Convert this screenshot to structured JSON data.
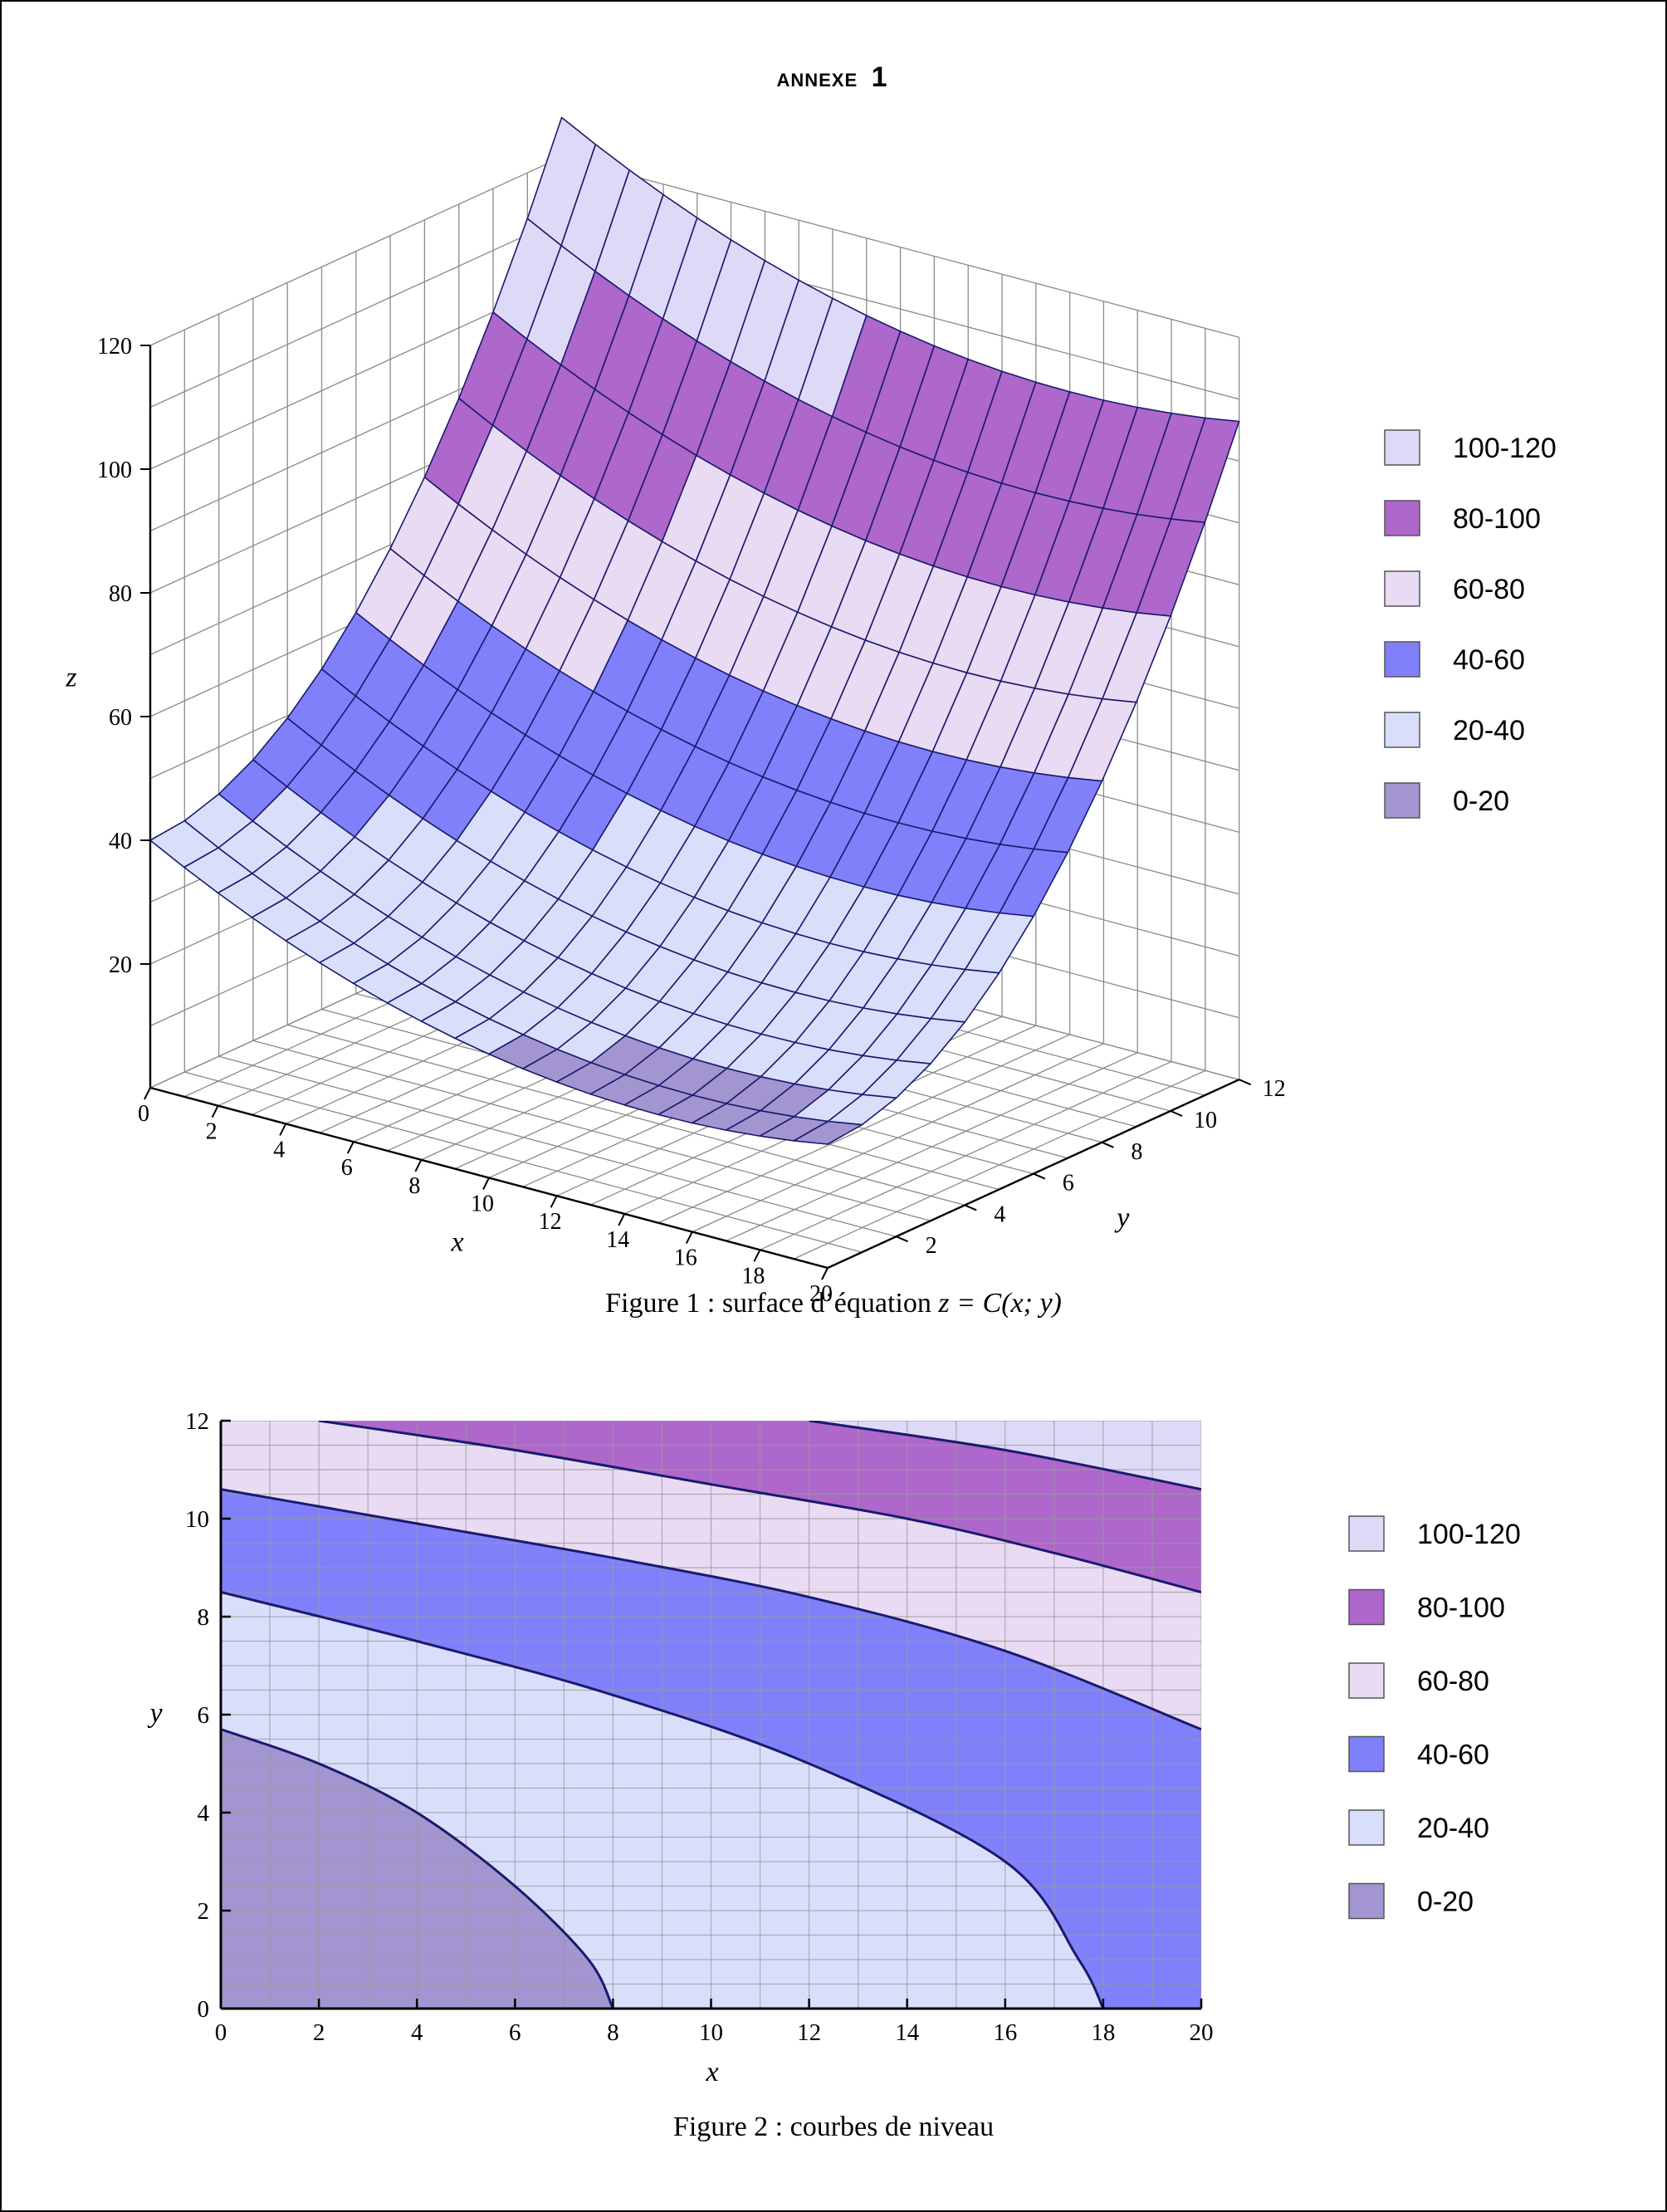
{
  "annex": {
    "prefix": "ANNEXE",
    "number": "1"
  },
  "colors": {
    "band_0_20": "#a395cf",
    "band_20_40": "#d9dffb",
    "band_40_60": "#8080fb",
    "band_60_80": "#e9dbf3",
    "band_80_100": "#ae67cb",
    "band_100_120": "#dfd9f8",
    "line": "#1a1a6e",
    "grid": "#8a8a8a"
  },
  "legend": [
    "100-120",
    "80-100",
    "60-80",
    "40-60",
    "20-40",
    "0-20"
  ],
  "chart_data": [
    {
      "type": "surface",
      "caption": {
        "text": "Figure 1 : surface d’équation ",
        "math": "z = C(x; y)"
      },
      "xlabel": "x",
      "ylabel": "y",
      "zlabel": "z",
      "xlim": [
        0,
        20
      ],
      "ylim": [
        0,
        12
      ],
      "zlim": [
        0,
        120
      ],
      "x_ticks": [
        "0",
        "2",
        "4",
        "6",
        "8",
        "10",
        "12",
        "14",
        "16",
        "18",
        "20"
      ],
      "y_ticks": [
        "2",
        "4",
        "6",
        "8",
        "10",
        "12"
      ],
      "z_ticks": [
        "20",
        "40",
        "60",
        "80",
        "100",
        "120"
      ],
      "levels": [
        20,
        40,
        60,
        80,
        100
      ],
      "surface_model": "z = x + 0.6*y^2 + 0.1*(x - 20)^2"
    },
    {
      "type": "contour",
      "caption": {
        "text": "Figure 2 : courbes de niveau"
      },
      "xlabel": "x",
      "ylabel": "y",
      "xlim": [
        0,
        20
      ],
      "ylim": [
        0,
        12
      ],
      "x_ticks": [
        "0",
        "2",
        "4",
        "6",
        "8",
        "10",
        "12",
        "14",
        "16",
        "18",
        "20"
      ],
      "y_ticks": [
        "0",
        "2",
        "4",
        "6",
        "8",
        "10",
        "12"
      ],
      "grid": true,
      "levels": [
        20,
        40,
        60,
        80,
        100
      ],
      "level_curves": [
        {
          "level": 20,
          "points": [
            [
              0,
              5.7
            ],
            [
              2,
              5.0
            ],
            [
              4,
              4.0
            ],
            [
              6,
              2.5
            ],
            [
              7.5,
              1.0
            ],
            [
              8,
              0
            ]
          ]
        },
        {
          "level": 40,
          "points": [
            [
              0,
              8.5
            ],
            [
              4,
              7.5
            ],
            [
              8,
              6.4
            ],
            [
              12,
              5.0
            ],
            [
              16,
              3.0
            ],
            [
              17.5,
              1.0
            ],
            [
              18,
              0
            ]
          ]
        },
        {
          "level": 60,
          "points": [
            [
              0,
              10.6
            ],
            [
              4,
              9.9
            ],
            [
              8,
              9.2
            ],
            [
              12,
              8.4
            ],
            [
              16,
              7.3
            ],
            [
              20,
              5.7
            ]
          ]
        },
        {
          "level": 80,
          "points": [
            [
              2,
              12
            ],
            [
              6,
              11.4
            ],
            [
              10,
              10.7
            ],
            [
              14,
              10.0
            ],
            [
              17,
              9.3
            ],
            [
              20,
              8.5
            ]
          ]
        },
        {
          "level": 100,
          "points": [
            [
              12,
              12
            ],
            [
              16,
              11.4
            ],
            [
              20,
              10.6
            ]
          ]
        }
      ]
    }
  ]
}
